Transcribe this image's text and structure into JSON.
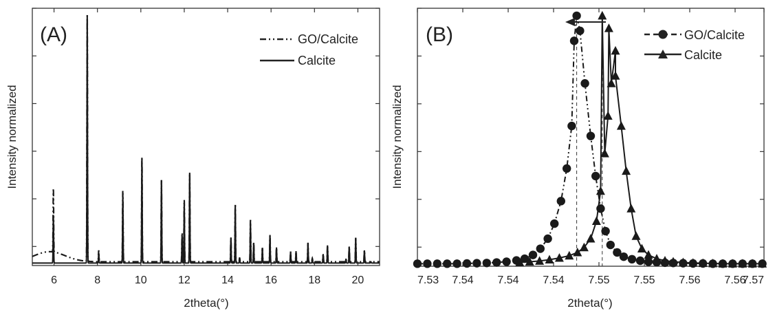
{
  "chart_data": [
    {
      "type": "line",
      "panel_label": "(A)",
      "xlabel": "2theta(°)",
      "ylabel": "Intensity normalized",
      "xlim": [
        5,
        21
      ],
      "ylim": [
        0,
        1.02
      ],
      "x_ticks": [
        6,
        8,
        10,
        12,
        14,
        16,
        18,
        20
      ],
      "x_tick_labels": [
        "6",
        "8",
        "10",
        "12",
        "14",
        "16",
        "18",
        "20"
      ],
      "y_tick_labels_shown": false,
      "legend_position": "top-right",
      "series": [
        {
          "name": "GO/Calcite",
          "style": "dash-dot-dot",
          "baseline": 0.015,
          "hump": {
            "center": 5.8,
            "height": 0.04,
            "width": 1.0
          },
          "peaks": [
            {
              "x": 5.97,
              "y": 0.27
            },
            {
              "x": 7.53,
              "y": 1.0
            },
            {
              "x": 8.06,
              "y": 0.06
            },
            {
              "x": 9.17,
              "y": 0.3
            },
            {
              "x": 10.05,
              "y": 0.43
            },
            {
              "x": 10.95,
              "y": 0.34
            },
            {
              "x": 11.9,
              "y": 0.13
            },
            {
              "x": 12.0,
              "y": 0.26
            },
            {
              "x": 12.25,
              "y": 0.37
            },
            {
              "x": 14.15,
              "y": 0.11
            },
            {
              "x": 14.35,
              "y": 0.24
            },
            {
              "x": 14.55,
              "y": 0.03
            },
            {
              "x": 15.05,
              "y": 0.18
            },
            {
              "x": 15.2,
              "y": 0.09
            },
            {
              "x": 15.6,
              "y": 0.07
            },
            {
              "x": 15.95,
              "y": 0.12
            },
            {
              "x": 16.25,
              "y": 0.07
            },
            {
              "x": 16.9,
              "y": 0.055
            },
            {
              "x": 17.15,
              "y": 0.055
            },
            {
              "x": 17.7,
              "y": 0.09
            },
            {
              "x": 17.9,
              "y": 0.03
            },
            {
              "x": 18.4,
              "y": 0.045
            },
            {
              "x": 18.6,
              "y": 0.08
            },
            {
              "x": 19.45,
              "y": 0.025
            },
            {
              "x": 19.6,
              "y": 0.075
            },
            {
              "x": 19.9,
              "y": 0.11
            },
            {
              "x": 20.3,
              "y": 0.06
            },
            {
              "x": 20.6,
              "y": 0.015
            }
          ]
        },
        {
          "name": "Calcite",
          "style": "solid",
          "baseline": 0.01,
          "peaks": [
            {
              "x": 5.97,
              "y": 0.2
            },
            {
              "x": 7.53,
              "y": 1.0
            },
            {
              "x": 8.06,
              "y": 0.05
            },
            {
              "x": 9.17,
              "y": 0.28
            },
            {
              "x": 10.05,
              "y": 0.43
            },
            {
              "x": 10.95,
              "y": 0.34
            },
            {
              "x": 11.9,
              "y": 0.12
            },
            {
              "x": 12.0,
              "y": 0.25
            },
            {
              "x": 12.25,
              "y": 0.37
            },
            {
              "x": 14.15,
              "y": 0.11
            },
            {
              "x": 14.35,
              "y": 0.24
            },
            {
              "x": 14.55,
              "y": 0.03
            },
            {
              "x": 15.05,
              "y": 0.17
            },
            {
              "x": 15.2,
              "y": 0.09
            },
            {
              "x": 15.6,
              "y": 0.07
            },
            {
              "x": 15.95,
              "y": 0.12
            },
            {
              "x": 16.25,
              "y": 0.07
            },
            {
              "x": 16.9,
              "y": 0.055
            },
            {
              "x": 17.15,
              "y": 0.055
            },
            {
              "x": 17.7,
              "y": 0.09
            },
            {
              "x": 17.9,
              "y": 0.03
            },
            {
              "x": 18.4,
              "y": 0.045
            },
            {
              "x": 18.6,
              "y": 0.08
            },
            {
              "x": 19.45,
              "y": 0.025
            },
            {
              "x": 19.6,
              "y": 0.075
            },
            {
              "x": 19.9,
              "y": 0.11
            },
            {
              "x": 20.3,
              "y": 0.06
            },
            {
              "x": 20.6,
              "y": 0.015
            }
          ]
        }
      ]
    },
    {
      "type": "line",
      "panel_label": "(B)",
      "xlabel": "2theta(°)",
      "ylabel": "Intensity normalized",
      "xlim": [
        7.53,
        7.572
      ],
      "ylim": [
        0,
        1.03
      ],
      "x_ticks": [
        7.53,
        7.5355,
        7.541,
        7.5465,
        7.552,
        7.5575,
        7.563,
        7.5685,
        7.572
      ],
      "x_tick_labels": [
        "7.53",
        "7.54",
        "7.54",
        "7.54",
        "7.55",
        "7.55",
        "7.56",
        "7.56",
        "7.57"
      ],
      "y_tick_labels_shown": false,
      "legend_position": "top-right",
      "annotation": "arrow pointing left from Calcite peak to GO/Calcite peak, dashed vertical lines at both peak positions",
      "series": [
        {
          "name": "GO/Calcite",
          "style": "dash-dot-dot",
          "marker": "circle",
          "peak_x": 7.5493,
          "points": [
            [
              7.53,
              0.01
            ],
            [
              7.5312,
              0.01
            ],
            [
              7.5324,
              0.01
            ],
            [
              7.5336,
              0.01
            ],
            [
              7.5348,
              0.01
            ],
            [
              7.536,
              0.011
            ],
            [
              7.5372,
              0.012
            ],
            [
              7.5384,
              0.013
            ],
            [
              7.5396,
              0.015
            ],
            [
              7.5408,
              0.018
            ],
            [
              7.542,
              0.023
            ],
            [
              7.543,
              0.03
            ],
            [
              7.544,
              0.045
            ],
            [
              7.5449,
              0.07
            ],
            [
              7.5458,
              0.11
            ],
            [
              7.5466,
              0.17
            ],
            [
              7.5474,
              0.26
            ],
            [
              7.5481,
              0.39
            ],
            [
              7.5487,
              0.56
            ],
            [
              7.549,
              0.9
            ],
            [
              7.5493,
              1.0
            ],
            [
              7.5497,
              0.94
            ],
            [
              7.5503,
              0.73
            ],
            [
              7.551,
              0.52
            ],
            [
              7.5516,
              0.36
            ],
            [
              7.5522,
              0.23
            ],
            [
              7.5528,
              0.14
            ],
            [
              7.5534,
              0.085
            ],
            [
              7.5542,
              0.055
            ],
            [
              7.555,
              0.038
            ],
            [
              7.556,
              0.028
            ],
            [
              7.557,
              0.022
            ],
            [
              7.558,
              0.018
            ],
            [
              7.559,
              0.016
            ],
            [
              7.56,
              0.014
            ],
            [
              7.561,
              0.013
            ],
            [
              7.5622,
              0.012
            ],
            [
              7.5634,
              0.011
            ],
            [
              7.5646,
              0.011
            ],
            [
              7.5658,
              0.01
            ],
            [
              7.567,
              0.01
            ],
            [
              7.5682,
              0.01
            ],
            [
              7.5694,
              0.01
            ],
            [
              7.5706,
              0.01
            ],
            [
              7.5718,
              0.01
            ]
          ]
        },
        {
          "name": "Calcite",
          "style": "solid",
          "marker": "triangle",
          "peak_x": 7.5524,
          "points": [
            [
              7.5424,
              0.015
            ],
            [
              7.5436,
              0.018
            ],
            [
              7.5448,
              0.021
            ],
            [
              7.546,
              0.026
            ],
            [
              7.5472,
              0.033
            ],
            [
              7.5484,
              0.042
            ],
            [
              7.5494,
              0.055
            ],
            [
              7.5502,
              0.075
            ],
            [
              7.551,
              0.11
            ],
            [
              7.5517,
              0.18
            ],
            [
              7.5522,
              0.3
            ],
            [
              7.5527,
              0.45
            ],
            [
              7.5531,
              0.6
            ],
            [
              7.5535,
              0.73
            ],
            [
              7.554,
              0.86
            ],
            [
              7.5524,
              1.0
            ],
            [
              7.5532,
              0.95
            ],
            [
              7.554,
              0.76
            ],
            [
              7.5547,
              0.56
            ],
            [
              7.5553,
              0.38
            ],
            [
              7.5559,
              0.23
            ],
            [
              7.5565,
              0.12
            ],
            [
              7.5572,
              0.07
            ],
            [
              7.558,
              0.045
            ],
            [
              7.559,
              0.03
            ],
            [
              7.56,
              0.022
            ],
            [
              7.561,
              0.018
            ],
            [
              7.5622,
              0.015
            ],
            [
              7.5634,
              0.013
            ],
            [
              7.5646,
              0.012
            ],
            [
              7.5658,
              0.011
            ],
            [
              7.567,
              0.01
            ],
            [
              7.5682,
              0.01
            ],
            [
              7.5694,
              0.01
            ],
            [
              7.5706,
              0.01
            ],
            [
              7.5718,
              0.01
            ]
          ]
        }
      ]
    }
  ]
}
